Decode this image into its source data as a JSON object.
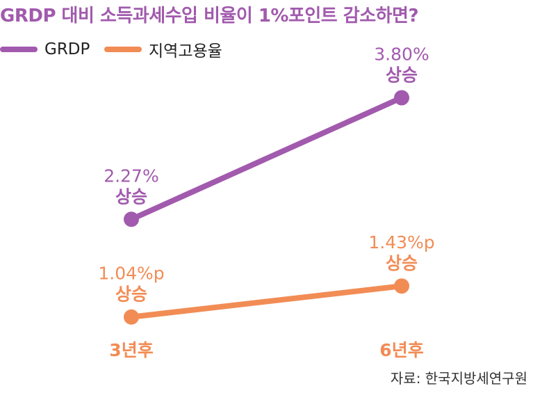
{
  "chart_data": {
    "type": "line",
    "title": "GRDP 대비 소득과세수입 비율이 1%포인트 감소하면?",
    "categories": [
      "3년후",
      "6년후"
    ],
    "series": [
      {
        "name": "GRDP",
        "values": [
          2.27,
          3.8
        ],
        "color": "#a15aad",
        "labels": [
          "2.27%",
          "3.80%"
        ],
        "sublabels": [
          "상승",
          "상승"
        ]
      },
      {
        "name": "지역고용율",
        "values": [
          1.04,
          1.43
        ],
        "color": "#f28c55",
        "labels": [
          "1.04%p",
          "1.43%p"
        ],
        "sublabels": [
          "상승",
          "상승"
        ]
      }
    ],
    "ylim": [
      0.6,
      4.4
    ],
    "grid": false,
    "legend": "top-left",
    "category_label_color": "#f28c55"
  },
  "source": "자료: 한국지방세연구원"
}
